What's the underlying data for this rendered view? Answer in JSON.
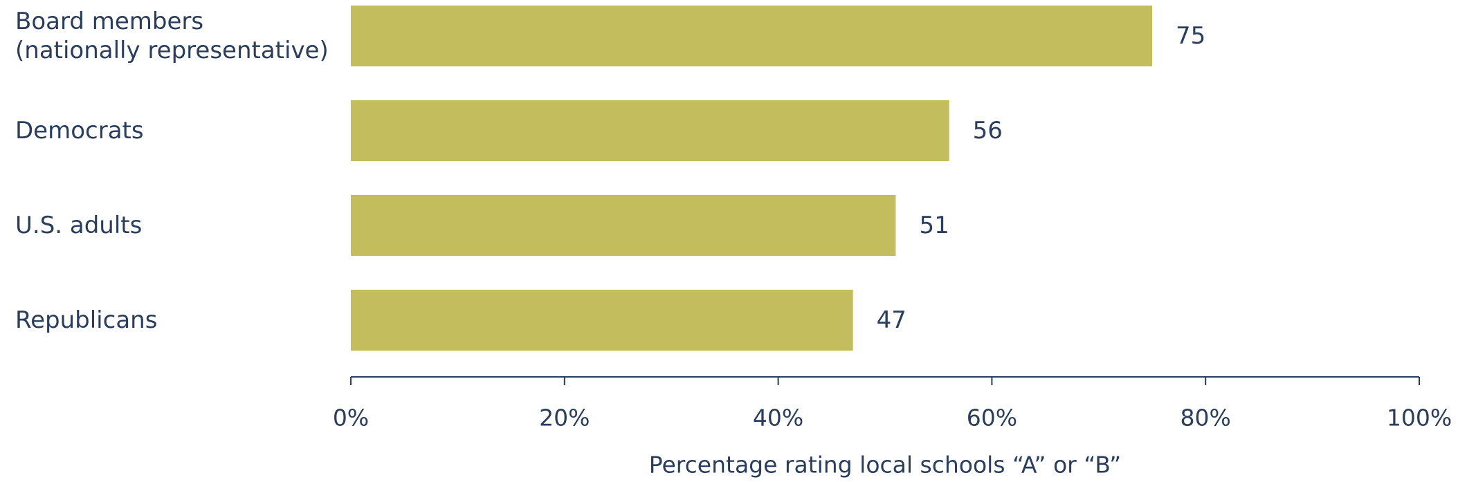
{
  "chart_data": {
    "type": "bar",
    "orientation": "horizontal",
    "categories": [
      [
        "Board members",
        "(nationally representative)"
      ],
      [
        "Democrats"
      ],
      [
        "U.S. adults"
      ],
      [
        "Republicans"
      ]
    ],
    "values": [
      75,
      56,
      51,
      47
    ],
    "xlabel": "Percentage rating local schools “A” or “B”",
    "ylabel": "",
    "xlim": [
      0,
      100
    ],
    "xticks": [
      {
        "value": 0,
        "label": "0%"
      },
      {
        "value": 20,
        "label": "20%"
      },
      {
        "value": 40,
        "label": "40%"
      },
      {
        "value": 60,
        "label": "60%"
      },
      {
        "value": 80,
        "label": "80%"
      },
      {
        "value": 100,
        "label": "100%"
      }
    ],
    "grid": false,
    "legend": "none",
    "bar_color": "#c3bd5e",
    "text_color": "#2a3d5c"
  }
}
